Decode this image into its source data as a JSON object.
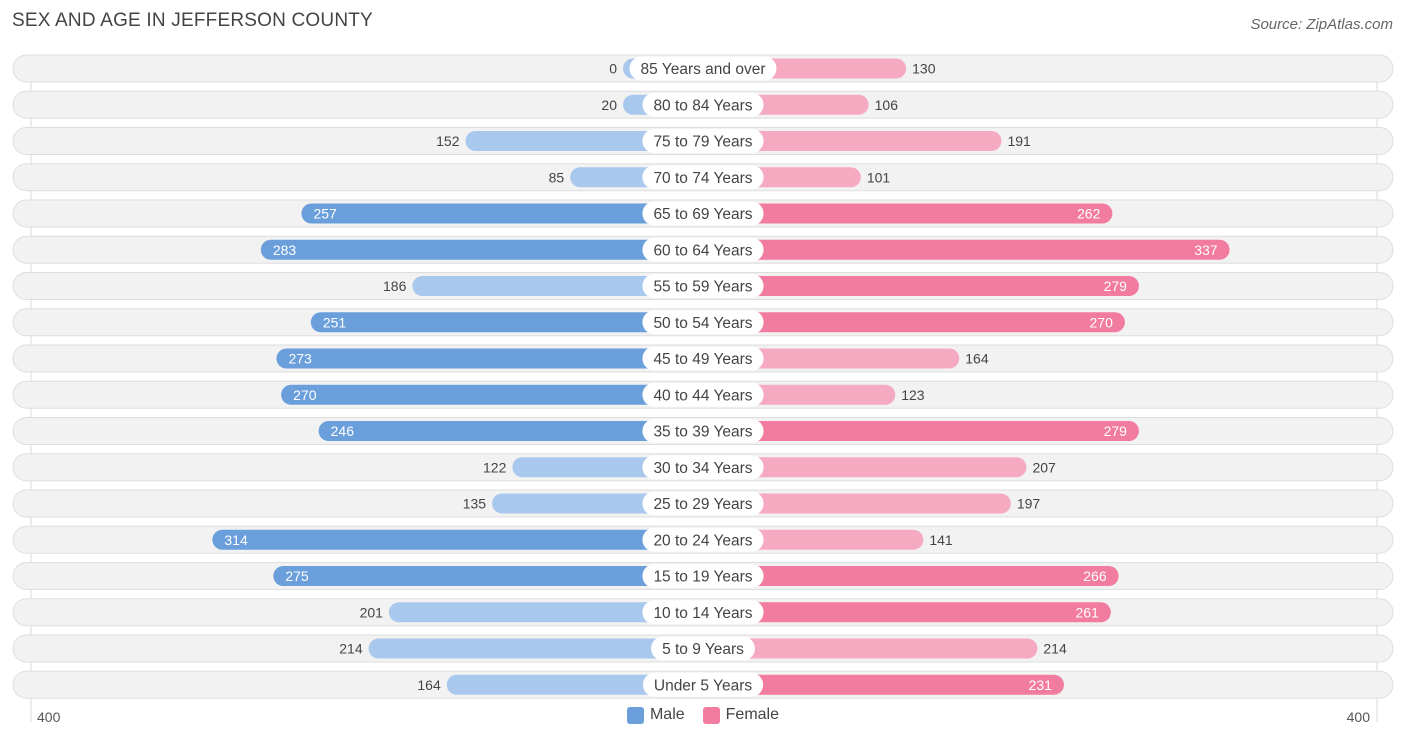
{
  "title": "SEX AND AGE IN JEFFERSON COUNTY",
  "source": "Source: ZipAtlas.com",
  "colors": {
    "male_strong": "#6a9fdc",
    "male_light": "#a9c8ee",
    "female_strong": "#f27ba0",
    "female_light": "#f6aac2",
    "row_bg": "#f2f2f2",
    "row_border": "#dedede"
  },
  "chart_data": {
    "type": "bar",
    "orientation": "horizontal-diverging",
    "title": "SEX AND AGE IN JEFFERSON COUNTY",
    "categories": [
      "85 Years and over",
      "80 to 84 Years",
      "75 to 79 Years",
      "70 to 74 Years",
      "65 to 69 Years",
      "60 to 64 Years",
      "55 to 59 Years",
      "50 to 54 Years",
      "45 to 49 Years",
      "40 to 44 Years",
      "35 to 39 Years",
      "30 to 34 Years",
      "25 to 29 Years",
      "20 to 24 Years",
      "15 to 19 Years",
      "10 to 14 Years",
      "5 to 9 Years",
      "Under 5 Years"
    ],
    "series": [
      {
        "name": "Male",
        "values": [
          0,
          20,
          152,
          85,
          257,
          283,
          186,
          251,
          273,
          270,
          246,
          122,
          135,
          314,
          275,
          201,
          214,
          164
        ]
      },
      {
        "name": "Female",
        "values": [
          130,
          106,
          191,
          101,
          262,
          337,
          279,
          270,
          164,
          123,
          279,
          207,
          197,
          141,
          266,
          261,
          214,
          231
        ]
      }
    ],
    "axis": {
      "left_label": "400",
      "right_label": "400",
      "max": 400
    },
    "legend": {
      "placement": "bottom-center",
      "items": [
        "Male",
        "Female"
      ]
    }
  }
}
